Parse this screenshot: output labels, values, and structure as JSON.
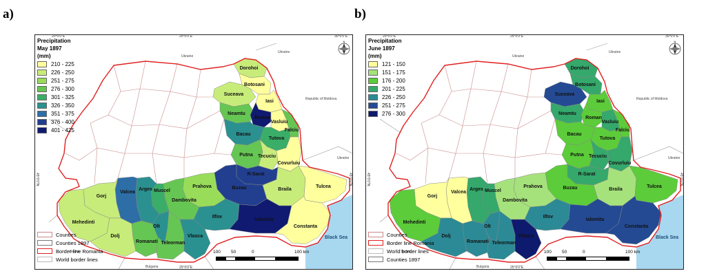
{
  "panels": [
    {
      "label": "a)",
      "legend_title": [
        "Precipitation",
        "May 1897",
        "(mm)"
      ],
      "classes": [
        {
          "range": "210 - 225",
          "color": "#ffff9e"
        },
        {
          "range": "226 - 250",
          "color": "#c8ec7a"
        },
        {
          "range": "251 - 275",
          "color": "#98dc5a"
        },
        {
          "range": "276 - 300",
          "color": "#66c653"
        },
        {
          "range": "301 - 325",
          "color": "#3aae68"
        },
        {
          "range": "326 - 350",
          "color": "#2b9090"
        },
        {
          "range": "351 - 375",
          "color": "#2d6ea6"
        },
        {
          "range": "376 - 400",
          "color": "#223f8f"
        },
        {
          "range": "401 - 425",
          "color": "#0f1a70"
        }
      ],
      "border_legend": [
        {
          "label": "Counties",
          "style": "counties"
        },
        {
          "label": "Counties 1897",
          "style": "counties1897"
        },
        {
          "label": "Border line Romania",
          "style": "border"
        },
        {
          "label": "World border lines",
          "style": "world"
        }
      ],
      "counties": [
        {
          "name": "Dorohoi",
          "cls": 1
        },
        {
          "name": "Botosani",
          "cls": 0
        },
        {
          "name": "Suceava",
          "cls": 1
        },
        {
          "name": "Iasi",
          "cls": 0
        },
        {
          "name": "Neamtu",
          "cls": 3
        },
        {
          "name": "Roman",
          "cls": 8
        },
        {
          "name": "Vasluiu",
          "cls": 0
        },
        {
          "name": "Falciu",
          "cls": 3
        },
        {
          "name": "Bacau",
          "cls": 5
        },
        {
          "name": "Tutova",
          "cls": 4
        },
        {
          "name": "Putna",
          "cls": 3
        },
        {
          "name": "Tecuciu",
          "cls": 1
        },
        {
          "name": "Covurluiu",
          "cls": 0
        },
        {
          "name": "R-Sarat",
          "cls": 7
        },
        {
          "name": "Buzau",
          "cls": 7
        },
        {
          "name": "Braila",
          "cls": 1
        },
        {
          "name": "Tulcea",
          "cls": 0
        },
        {
          "name": "Prahova",
          "cls": 2
        },
        {
          "name": "Dambovita",
          "cls": 3
        },
        {
          "name": "Muscel",
          "cls": 4
        },
        {
          "name": "Arges",
          "cls": 5
        },
        {
          "name": "Valcea",
          "cls": 6
        },
        {
          "name": "Gorj",
          "cls": 1
        },
        {
          "name": "Mehedinti",
          "cls": 1
        },
        {
          "name": "Dolj",
          "cls": 1
        },
        {
          "name": "Romanati",
          "cls": 3
        },
        {
          "name": "Olt",
          "cls": 5
        },
        {
          "name": "Teleorman",
          "cls": 3
        },
        {
          "name": "Vlasca",
          "cls": 5
        },
        {
          "name": "Ilfov",
          "cls": 5
        },
        {
          "name": "Ialomita",
          "cls": 8
        },
        {
          "name": "Constanta",
          "cls": 0
        }
      ],
      "scale": {
        "labels": [
          "100",
          "50",
          "0",
          "100 km"
        ]
      },
      "neighbors": [
        "Ukraine",
        "Ukraine",
        "Republic of Moldova",
        "Ukraine",
        "Serbia",
        "Bulgaria"
      ],
      "sea": "Black Sea",
      "top_ticks": [
        "20°0'0\"E",
        "25°0'0\"E",
        "30°0'0\"E"
      ],
      "bottom_ticks": [
        "25°0'0\"E"
      ],
      "side_ticks": [
        "45°0'0\"N",
        "45°0'0\"N"
      ]
    },
    {
      "label": "b)",
      "legend_title": [
        "Precipitation",
        "June 1897",
        "(mm)"
      ],
      "classes": [
        {
          "range": "121 - 150",
          "color": "#ffff9e"
        },
        {
          "range": "151 - 175",
          "color": "#a6e27c"
        },
        {
          "range": "176 - 200",
          "color": "#5ccc3a"
        },
        {
          "range": "201 - 225",
          "color": "#35a86c"
        },
        {
          "range": "226 - 250",
          "color": "#2b8a96"
        },
        {
          "range": "251 - 275",
          "color": "#244a94"
        },
        {
          "range": "276 - 300",
          "color": "#0e1a6e"
        }
      ],
      "border_legend": [
        {
          "label": "Counties",
          "style": "counties"
        },
        {
          "label": "Border line Romania",
          "style": "border"
        },
        {
          "label": "World border lines",
          "style": "world"
        },
        {
          "label": "Counties 1897",
          "style": "counties1897"
        }
      ],
      "counties": [
        {
          "name": "Dorohoi",
          "cls": 3
        },
        {
          "name": "Botosani",
          "cls": 3
        },
        {
          "name": "Suceava",
          "cls": 5
        },
        {
          "name": "Iasi",
          "cls": 2
        },
        {
          "name": "Neamtu",
          "cls": 3
        },
        {
          "name": "Roman",
          "cls": 2
        },
        {
          "name": "Vasluiu",
          "cls": 3
        },
        {
          "name": "Falciu",
          "cls": 2
        },
        {
          "name": "Bacau",
          "cls": 2
        },
        {
          "name": "Tutova",
          "cls": 2
        },
        {
          "name": "Putna",
          "cls": 2
        },
        {
          "name": "Tecuciu",
          "cls": 3
        },
        {
          "name": "Covurluiu",
          "cls": 3
        },
        {
          "name": "R-Sarat",
          "cls": 3
        },
        {
          "name": "Buzau",
          "cls": 2
        },
        {
          "name": "Braila",
          "cls": 1
        },
        {
          "name": "Tulcea",
          "cls": 2
        },
        {
          "name": "Prahova",
          "cls": 1
        },
        {
          "name": "Dambovita",
          "cls": 1
        },
        {
          "name": "Muscel",
          "cls": 3
        },
        {
          "name": "Arges",
          "cls": 3
        },
        {
          "name": "Valcea",
          "cls": 0
        },
        {
          "name": "Gorj",
          "cls": 0
        },
        {
          "name": "Mehedinti",
          "cls": 2
        },
        {
          "name": "Dolj",
          "cls": 4
        },
        {
          "name": "Romanati",
          "cls": 4
        },
        {
          "name": "Olt",
          "cls": 4
        },
        {
          "name": "Teleorman",
          "cls": 4
        },
        {
          "name": "Vlasca",
          "cls": 6
        },
        {
          "name": "Ilfov",
          "cls": 4
        },
        {
          "name": "Ialomita",
          "cls": 5
        },
        {
          "name": "Constanta",
          "cls": 5
        }
      ],
      "scale": {
        "labels": [
          "100",
          "50",
          "0",
          "100 km"
        ]
      },
      "neighbors": [
        "Ukraine",
        "Ukraine",
        "Republic of Moldova",
        "Ukraine",
        "Serbia",
        "Bulgaria"
      ],
      "sea": "Black Sea",
      "top_ticks": [
        "20°0'0\"E",
        "25°0'0\"E",
        "30°0'0\"E"
      ],
      "bottom_ticks": [
        "25°0'0\"E"
      ],
      "side_ticks": [
        "45°0'0\"N",
        "45°0'0\"N"
      ]
    }
  ],
  "colors": {
    "border_romania": "#e02020",
    "county_lines": "#c98a8a",
    "sea": "#a8d8f0",
    "outside": "#ffffff"
  }
}
